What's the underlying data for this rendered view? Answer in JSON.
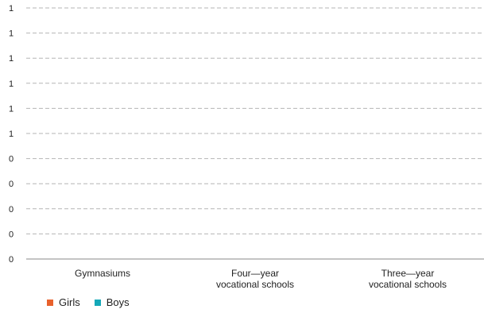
{
  "chart_data": {
    "type": "bar",
    "categories": [
      [
        "Gymnasiums"
      ],
      [
        "Four—year",
        "vocational schools"
      ],
      [
        "Three—year",
        "vocational schools"
      ]
    ],
    "y_tick_labels": [
      "0",
      "0",
      "0",
      "0",
      "0",
      "1",
      "1",
      "1",
      "1",
      "1",
      "1"
    ],
    "series": [
      {
        "name": "Girls",
        "color": "#e8612c",
        "values": [
          0,
          0,
          0
        ]
      },
      {
        "name": "Boys",
        "color": "#14a8b8",
        "values": [
          0,
          0,
          0
        ]
      }
    ],
    "grid": true,
    "legend": "bottom-left",
    "title": "",
    "xlabel": "",
    "ylabel": ""
  },
  "legend": {
    "items": [
      {
        "label": "Girls",
        "color": "#e8612c"
      },
      {
        "label": "Boys",
        "color": "#14a8b8"
      }
    ]
  }
}
